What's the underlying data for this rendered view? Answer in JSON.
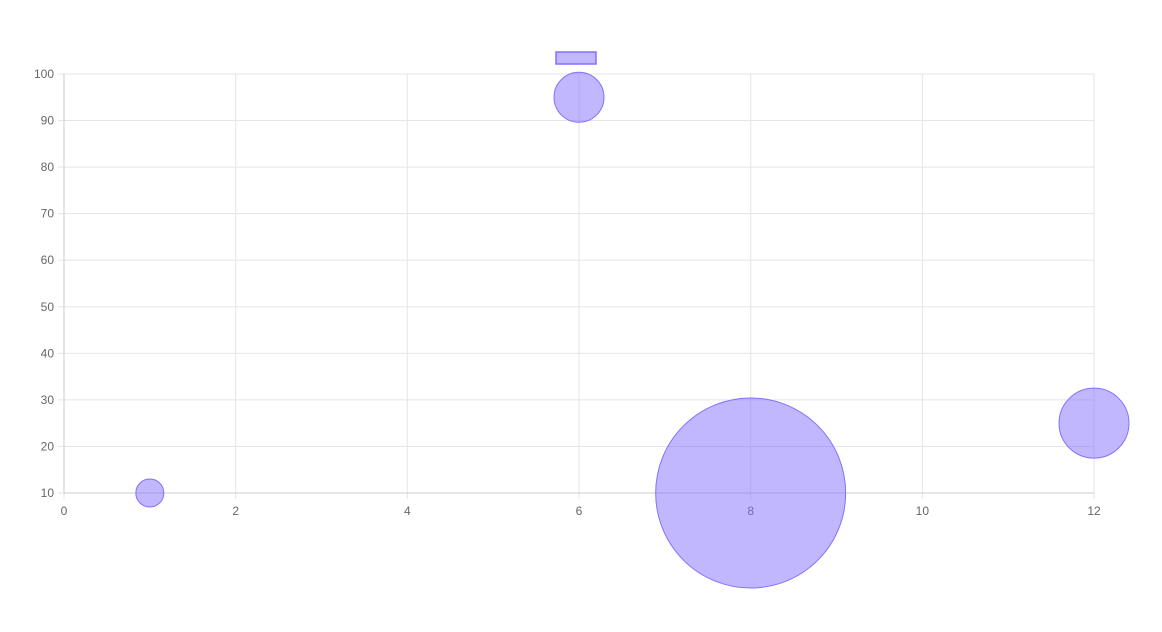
{
  "chart_data": {
    "type": "bubble",
    "title": "",
    "xlabel": "",
    "ylabel": "",
    "xlim": [
      0,
      12
    ],
    "ylim": [
      10,
      100
    ],
    "x_ticks": [
      "0",
      "2",
      "4",
      "6",
      "8",
      "10",
      "12"
    ],
    "y_ticks": [
      "10",
      "20",
      "30",
      "40",
      "50",
      "60",
      "70",
      "80",
      "90",
      "100"
    ],
    "grid": true,
    "legend": {
      "position": "top",
      "entries": [
        {
          "label": ""
        }
      ]
    },
    "series": [
      {
        "name": "",
        "points": [
          {
            "x": 1,
            "y": 10,
            "r": 14
          },
          {
            "x": 6,
            "y": 95,
            "r": 25
          },
          {
            "x": 8,
            "y": 10,
            "r": 95
          },
          {
            "x": 12,
            "y": 25,
            "r": 35
          }
        ]
      }
    ]
  },
  "colors": {
    "bubble_fill": "rgba(132,112,255,0.5)",
    "bubble_stroke": "#8470ff",
    "grid": "#e5e5e5",
    "axis": "#cccccc",
    "tick_text": "#666666"
  }
}
